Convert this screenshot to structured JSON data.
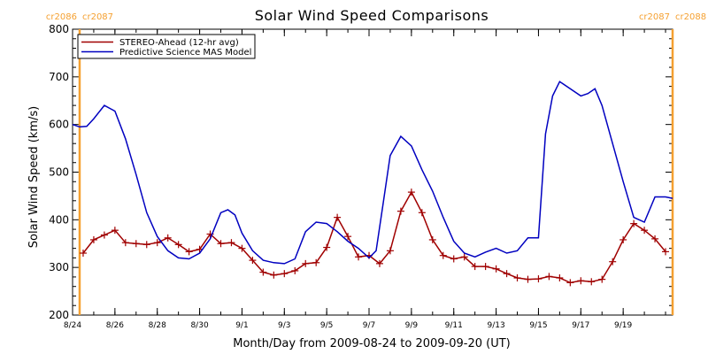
{
  "chart_data": {
    "type": "line",
    "title": "Solar Wind Speed Comparisons",
    "xlabel": "Month/Day from 2009-08-24 to 2009-09-20 (UT)",
    "ylabel": "Solar Wind Speed (km/s)",
    "xlim": [
      "2009-08-24T00:00",
      "2009-09-21T08:00"
    ],
    "ylim": [
      200,
      800
    ],
    "yticks": [
      200,
      300,
      400,
      500,
      600,
      700,
      800
    ],
    "xticks": [
      {
        "date": "2009-08-24",
        "label": "8/24"
      },
      {
        "date": "2009-08-26",
        "label": "8/26"
      },
      {
        "date": "2009-08-28",
        "label": "8/28"
      },
      {
        "date": "2009-08-30",
        "label": "8/30"
      },
      {
        "date": "2009-09-01",
        "label": "9/1"
      },
      {
        "date": "2009-09-03",
        "label": "9/3"
      },
      {
        "date": "2009-09-05",
        "label": "9/5"
      },
      {
        "date": "2009-09-07",
        "label": "9/7"
      },
      {
        "date": "2009-09-09",
        "label": "9/9"
      },
      {
        "date": "2009-09-11",
        "label": "9/11"
      },
      {
        "date": "2009-09-13",
        "label": "9/13"
      },
      {
        "date": "2009-09-15",
        "label": "9/15"
      },
      {
        "date": "2009-09-17",
        "label": "9/17"
      },
      {
        "date": "2009-09-19",
        "label": "9/19"
      }
    ],
    "carrington_markers": [
      {
        "date": "2009-08-24T08:00",
        "left_label": "cr2086",
        "right_label": "cr2087"
      },
      {
        "date": "2009-09-21T08:00",
        "left_label": "cr2087",
        "right_label": "cr2088"
      }
    ],
    "series": [
      {
        "name": "STEREO-Ahead (12-hr avg)",
        "color": "#a00000",
        "marker": "plus",
        "x": [
          "2009-08-24T12:00",
          "2009-08-25T00:00",
          "2009-08-25T12:00",
          "2009-08-26T00:00",
          "2009-08-26T12:00",
          "2009-08-27T00:00",
          "2009-08-27T12:00",
          "2009-08-28T00:00",
          "2009-08-28T12:00",
          "2009-08-29T00:00",
          "2009-08-29T12:00",
          "2009-08-30T00:00",
          "2009-08-30T12:00",
          "2009-08-31T00:00",
          "2009-08-31T12:00",
          "2009-09-01T00:00",
          "2009-09-01T12:00",
          "2009-09-02T00:00",
          "2009-09-02T12:00",
          "2009-09-03T00:00",
          "2009-09-03T12:00",
          "2009-09-04T00:00",
          "2009-09-04T12:00",
          "2009-09-05T00:00",
          "2009-09-05T12:00",
          "2009-09-06T00:00",
          "2009-09-06T12:00",
          "2009-09-07T00:00",
          "2009-09-07T12:00",
          "2009-09-08T00:00",
          "2009-09-08T12:00",
          "2009-09-09T00:00",
          "2009-09-09T12:00",
          "2009-09-10T00:00",
          "2009-09-10T12:00",
          "2009-09-11T00:00",
          "2009-09-11T12:00",
          "2009-09-12T00:00",
          "2009-09-12T12:00",
          "2009-09-13T00:00",
          "2009-09-13T12:00",
          "2009-09-14T00:00",
          "2009-09-14T12:00",
          "2009-09-15T00:00",
          "2009-09-15T12:00",
          "2009-09-16T00:00",
          "2009-09-16T12:00",
          "2009-09-17T00:00",
          "2009-09-17T12:00",
          "2009-09-18T00:00",
          "2009-09-18T12:00",
          "2009-09-19T00:00",
          "2009-09-19T12:00",
          "2009-09-20T00:00",
          "2009-09-20T12:00",
          "2009-09-21T00:00"
        ],
        "values": [
          330,
          358,
          368,
          378,
          352,
          350,
          348,
          352,
          362,
          348,
          333,
          338,
          370,
          350,
          352,
          340,
          315,
          290,
          284,
          287,
          293,
          308,
          310,
          342,
          405,
          365,
          322,
          325,
          308,
          335,
          418,
          458,
          415,
          358,
          325,
          318,
          322,
          302,
          302,
          297,
          287,
          278,
          275,
          276,
          281,
          278,
          268,
          272,
          270,
          275,
          312,
          358,
          392,
          378,
          360,
          333
        ]
      },
      {
        "name": "Predictive Science MAS Model",
        "color": "#0000c0",
        "x": [
          "2009-08-24T00:00",
          "2009-08-24T08:00",
          "2009-08-24T16:00",
          "2009-08-25T00:00",
          "2009-08-25T12:00",
          "2009-08-26T00:00",
          "2009-08-26T12:00",
          "2009-08-27T00:00",
          "2009-08-27T12:00",
          "2009-08-28T00:00",
          "2009-08-28T12:00",
          "2009-08-29T00:00",
          "2009-08-29T12:00",
          "2009-08-30T00:00",
          "2009-08-30T12:00",
          "2009-08-31T00:00",
          "2009-08-31T08:00",
          "2009-08-31T16:00",
          "2009-09-01T00:00",
          "2009-09-01T12:00",
          "2009-09-02T00:00",
          "2009-09-02T12:00",
          "2009-09-03T00:00",
          "2009-09-03T12:00",
          "2009-09-04T00:00",
          "2009-09-04T12:00",
          "2009-09-05T00:00",
          "2009-09-05T12:00",
          "2009-09-06T00:00",
          "2009-09-06T12:00",
          "2009-09-07T00:00",
          "2009-09-07T08:00",
          "2009-09-07T16:00",
          "2009-09-08T00:00",
          "2009-09-08T12:00",
          "2009-09-09T00:00",
          "2009-09-09T12:00",
          "2009-09-10T00:00",
          "2009-09-10T12:00",
          "2009-09-11T00:00",
          "2009-09-11T12:00",
          "2009-09-12T00:00",
          "2009-09-12T12:00",
          "2009-09-13T00:00",
          "2009-09-13T12:00",
          "2009-09-14T00:00",
          "2009-09-14T12:00",
          "2009-09-15T00:00",
          "2009-09-15T08:00",
          "2009-09-15T16:00",
          "2009-09-16T00:00",
          "2009-09-16T12:00",
          "2009-09-17T00:00",
          "2009-09-17T08:00",
          "2009-09-17T16:00",
          "2009-09-18T00:00",
          "2009-09-18T12:00",
          "2009-09-19T00:00",
          "2009-09-19T12:00",
          "2009-09-20T00:00",
          "2009-09-20T12:00",
          "2009-09-21T00:00",
          "2009-09-21T08:00"
        ],
        "values": [
          600,
          595,
          596,
          612,
          640,
          628,
          570,
          495,
          415,
          365,
          335,
          320,
          318,
          330,
          360,
          415,
          421,
          410,
          372,
          335,
          315,
          310,
          308,
          318,
          375,
          395,
          392,
          375,
          355,
          340,
          320,
          335,
          435,
          535,
          575,
          555,
          505,
          460,
          405,
          355,
          330,
          322,
          332,
          340,
          330,
          335,
          362,
          362,
          580,
          660,
          690,
          675,
          660,
          665,
          675,
          640,
          560,
          480,
          405,
          395,
          448,
          448,
          445
        ]
      }
    ]
  }
}
